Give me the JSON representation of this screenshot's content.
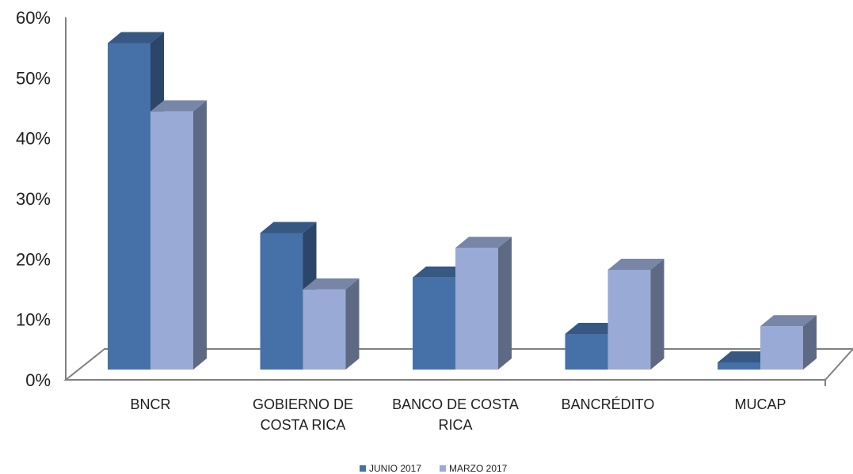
{
  "chart_data": {
    "type": "bar",
    "title": "",
    "xlabel": "",
    "ylabel": "",
    "categories": [
      [
        "BNCR"
      ],
      [
        "GOBIERNO DE",
        "COSTA RICA"
      ],
      [
        "BANCO DE COSTA",
        "RICA"
      ],
      [
        "BANCRÉDITO"
      ],
      [
        "MUCAP"
      ]
    ],
    "series": [
      {
        "name": "JUNIO 2017",
        "values": [
          55,
          23,
          15.5,
          6,
          1.2
        ],
        "color": "#4571a8"
      },
      {
        "name": "MARZO 2017",
        "values": [
          43.5,
          13.5,
          20.5,
          16.8,
          7.3
        ],
        "color": "#98aad5"
      }
    ],
    "ylim": [
      0,
      60
    ],
    "yticks": [
      "0%",
      "10%",
      "20%",
      "30%",
      "40%",
      "50%",
      "60%"
    ],
    "grid": false,
    "legend_position": "bottom",
    "render": "3d-bar"
  }
}
